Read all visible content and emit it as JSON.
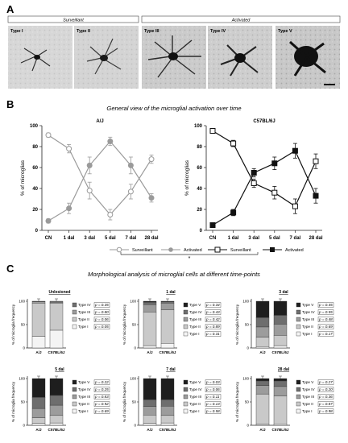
{
  "panels": {
    "a": "A",
    "b": "B",
    "c": "C"
  },
  "panel_a": {
    "group_left": "Surveillant",
    "group_right": "Activated",
    "types": [
      "Type I",
      "Type II",
      "Type III",
      "Type IV",
      "Type V"
    ]
  },
  "panel_b": {
    "heading": "General view of the microglial activation over time",
    "legend_surveillant": "Surveillant",
    "legend_activated": "Activated",
    "significance": "*"
  },
  "panel_c": {
    "heading": "Morphological analysis of microglial cells at different time-points"
  },
  "colors": {
    "aj_line": "#9a9a9a",
    "c57_line": "#111111",
    "type_v": "#1e1e1e",
    "type_iv": "#6e6e6e",
    "type_iii": "#9c9c9c",
    "type_ii": "#c9c9c9",
    "type_i": "#f4f4f4"
  },
  "chart_data": [
    {
      "type": "line",
      "title": "A/J",
      "ylabel": "% of microglias",
      "categories": [
        "CN",
        "1 dal",
        "3 dal",
        "5 dal",
        "7 dal",
        "28 dal"
      ],
      "ylim": [
        0,
        100
      ],
      "yticks": [
        0,
        20,
        40,
        60,
        80,
        100
      ],
      "series": [
        {
          "name": "Surveillant",
          "values": [
            91,
            78,
            38,
            15,
            37,
            68
          ],
          "errors": [
            2,
            4,
            8,
            5,
            7,
            4
          ]
        },
        {
          "name": "Activated",
          "values": [
            9,
            21,
            62,
            85,
            62,
            31
          ],
          "errors": [
            2,
            5,
            8,
            4,
            8,
            4
          ]
        }
      ]
    },
    {
      "type": "line",
      "title": "C57BL/6J",
      "ylabel": "% of microglias",
      "categories": [
        "CN",
        "1 dal",
        "3 dal",
        "5 dal",
        "7 dal",
        "28 dal"
      ],
      "ylim": [
        0,
        100
      ],
      "yticks": [
        0,
        20,
        40,
        60,
        80,
        100
      ],
      "series": [
        {
          "name": "Surveillant",
          "values": [
            95,
            83,
            45,
            36,
            23,
            66
          ],
          "errors": [
            1,
            3,
            4,
            6,
            7,
            7
          ]
        },
        {
          "name": "Activated",
          "values": [
            5,
            17,
            55,
            64,
            76,
            33
          ],
          "errors": [
            1,
            3,
            4,
            6,
            7,
            7
          ]
        }
      ]
    },
    {
      "type": "bar",
      "stacked": true,
      "title": "Unlesioned",
      "ylabel": "% of microglia frequency",
      "categories": [
        "A/J",
        "C57BL/6J"
      ],
      "yticks": [
        0,
        50,
        100
      ],
      "series": [
        {
          "name": "Type I",
          "values": [
            25,
            38
          ],
          "p": "p = 0.05"
        },
        {
          "name": "Type II",
          "values": [
            71,
            58
          ],
          "p": "p = 0.06"
        },
        {
          "name": "Type III",
          "values": [
            3,
            2
          ],
          "p": "p = 0.80"
        },
        {
          "name": "Type IV",
          "values": [
            1,
            2
          ],
          "p": "p = 0.35"
        }
      ]
    },
    {
      "type": "bar",
      "stacked": true,
      "title": "1 dal",
      "ylabel": "% of microglia frequency",
      "categories": [
        "A/J",
        "C57BL/6J"
      ],
      "yticks": [
        0,
        50,
        100
      ],
      "series": [
        {
          "name": "Type I",
          "values": [
            5,
            10
          ],
          "p": "p = 0.31"
        },
        {
          "name": "Type II",
          "values": [
            72,
            72
          ],
          "p": "p = 0.89"
        },
        {
          "name": "Type III",
          "values": [
            16,
            14
          ],
          "p": "p = 0.42"
        },
        {
          "name": "Type IV",
          "values": [
            5,
            3
          ],
          "p": "p = 0.43"
        },
        {
          "name": "Type V",
          "values": [
            2,
            1
          ],
          "p": "p = 0.34"
        }
      ]
    },
    {
      "type": "bar",
      "stacked": true,
      "title": "3 dal",
      "ylabel": "% of microglia frequency",
      "categories": [
        "A/J",
        "C57BL/6J"
      ],
      "yticks": [
        0,
        50,
        100
      ],
      "series": [
        {
          "name": "Type I",
          "values": [
            3,
            5
          ],
          "p": "p = 0.17"
        },
        {
          "name": "Type II",
          "values": [
            20,
            22
          ],
          "p": "p = 0.69"
        },
        {
          "name": "Type III",
          "values": [
            22,
            24
          ],
          "p": "p = 0.48"
        },
        {
          "name": "Type IV",
          "values": [
            20,
            19
          ],
          "p": "p = 0.55"
        },
        {
          "name": "Type V",
          "values": [
            35,
            30
          ],
          "p": "p = 0.45"
        }
      ]
    },
    {
      "type": "bar",
      "stacked": true,
      "title": "5 dal",
      "ylabel": "% of microglia frequency",
      "categories": [
        "A/J",
        "C57BL/6J"
      ],
      "yticks": [
        0,
        50,
        100
      ],
      "series": [
        {
          "name": "Type I",
          "values": [
            4,
            5
          ],
          "p": "p = 0.69"
        },
        {
          "name": "Type II",
          "values": [
            12,
            16
          ],
          "p": "p = 0.92"
        },
        {
          "name": "Type III",
          "values": [
            20,
            22
          ],
          "p": "p = 0.83"
        },
        {
          "name": "Type IV",
          "values": [
            24,
            21
          ],
          "p": "p = 0.25"
        },
        {
          "name": "Type V",
          "values": [
            40,
            36
          ],
          "p": "p = 0.22"
        }
      ]
    },
    {
      "type": "bar",
      "stacked": true,
      "title": "7 dal",
      "ylabel": "% of microglia frequency",
      "categories": [
        "A/J",
        "C57BL/6J"
      ],
      "yticks": [
        0,
        50,
        100
      ],
      "series": [
        {
          "name": "Type I",
          "values": [
            4,
            5
          ],
          "p": "p = 0.58"
        },
        {
          "name": "Type II",
          "values": [
            18,
            16
          ],
          "p": "p = 0.13"
        },
        {
          "name": "Type III",
          "values": [
            18,
            20
          ],
          "p": "p = 0.11"
        },
        {
          "name": "Type IV",
          "values": [
            15,
            14
          ],
          "p": "p = 0.06"
        },
        {
          "name": "Type V",
          "values": [
            45,
            45
          ],
          "p": "p = 0.03"
        }
      ]
    },
    {
      "type": "bar",
      "stacked": true,
      "title": "28 dal",
      "ylabel": "% of microglia frequency",
      "categories": [
        "A/J",
        "C57BL/6J"
      ],
      "yticks": [
        0,
        50,
        100
      ],
      "series": [
        {
          "name": "Type I",
          "values": [
            2,
            3
          ],
          "p": "p = 0.98"
        },
        {
          "name": "Type II",
          "values": [
            65,
            60
          ],
          "p": "p = 0.87"
        },
        {
          "name": "Type III",
          "values": [
            18,
            20
          ],
          "p": "p = 0.36"
        },
        {
          "name": "Type IV",
          "values": [
            10,
            12
          ],
          "p": "p = 0.20"
        },
        {
          "name": "Type V",
          "values": [
            5,
            5
          ],
          "p": "p = 0.27"
        }
      ]
    }
  ]
}
